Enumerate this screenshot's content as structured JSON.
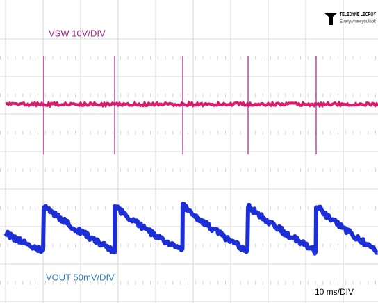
{
  "header": {
    "logo": "TELEDYNE LECROY",
    "tagline": "Everywhereyoulook"
  },
  "channels": [
    {
      "label": "VSW 10V/DIV"
    },
    {
      "label": "VOUT 50mV/DIV"
    }
  ],
  "timebase": "10 ms/DIV"
}
